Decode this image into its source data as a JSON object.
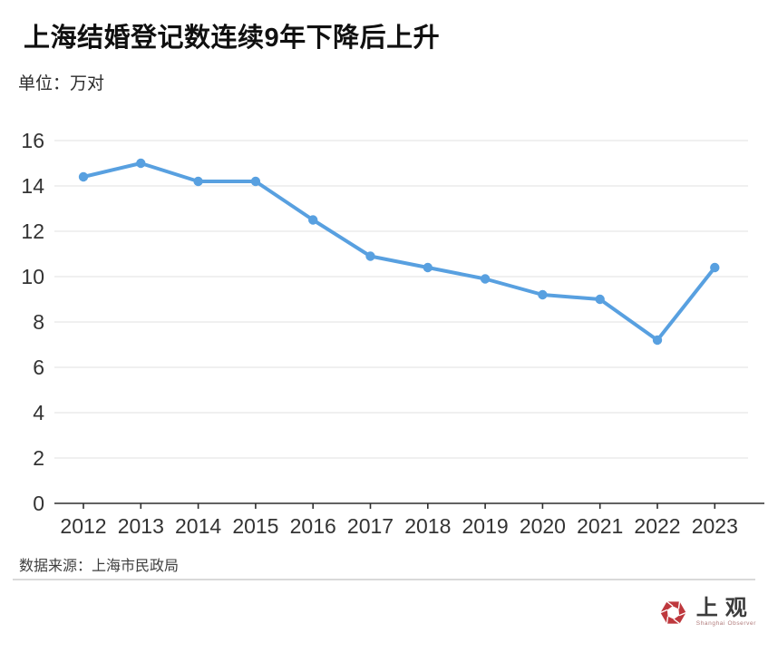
{
  "page": {
    "title": "上海结婚登记数连续9年下降后上升",
    "unit_label": "单位：万对",
    "source_label": "数据来源：上海市民政局"
  },
  "chart_data": {
    "type": "line",
    "title": "上海结婚登记数连续9年下降后上升",
    "unit": "万对",
    "categories": [
      "2012",
      "2013",
      "2014",
      "2015",
      "2016",
      "2017",
      "2018",
      "2019",
      "2020",
      "2021",
      "2022",
      "2023"
    ],
    "values": [
      14.4,
      15.0,
      14.2,
      14.2,
      12.5,
      10.9,
      10.4,
      9.9,
      9.2,
      9.0,
      7.2,
      10.4
    ],
    "ylim": [
      0,
      16
    ],
    "ytick_step": 2,
    "grid": true,
    "legend": false,
    "marker": "circle",
    "line_color": "#58a0e0",
    "source": "上海市民政局"
  },
  "logo": {
    "name": "上观",
    "subtitle": "Shanghai Observer",
    "icon_color": "#be383d"
  },
  "colors": {
    "accent_blue": "#58a0e0",
    "grid_gray": "#e8e8e8",
    "axis_dark": "#2e2e2e",
    "divider_gray": "#d9d9d9",
    "logo_red": "#be383d"
  }
}
